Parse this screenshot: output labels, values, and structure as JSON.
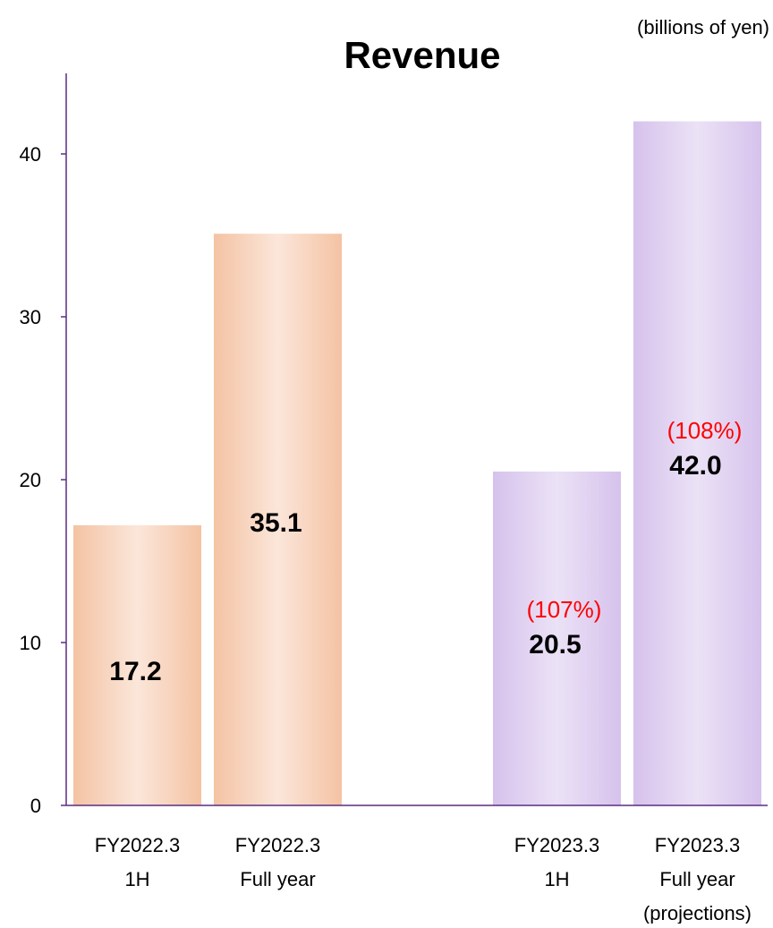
{
  "chart_data": {
    "type": "bar",
    "title": "Revenue",
    "unit_note": "(billions of yen)",
    "ylim": [
      0,
      45
    ],
    "yticks": [
      0,
      10,
      20,
      30,
      40
    ],
    "grid": false,
    "categories": [
      {
        "lines": [
          "FY2022.3",
          "1H"
        ]
      },
      {
        "lines": [
          "FY2022.3",
          "Full year"
        ]
      },
      {
        "lines": [
          "FY2023.3",
          "1H"
        ]
      },
      {
        "lines": [
          "FY2023.3",
          "Full year",
          "(projections)"
        ]
      }
    ],
    "values": [
      17.2,
      35.1,
      20.5,
      42.0
    ],
    "value_labels": [
      "17.2",
      "35.1",
      "20.5",
      "42.0"
    ],
    "growth_labels": [
      "",
      "",
      "(107%)",
      "(108%)"
    ],
    "colors": {
      "fy2022_edge": "#f4c3a3",
      "fy2022_center": "#fbe6da",
      "fy2023_edge": "#d6c2ec",
      "fy2023_center": "#ebe2f6",
      "axis": "#5a2d82",
      "growth_text": "#ff0000",
      "value_text": "#000000"
    }
  }
}
